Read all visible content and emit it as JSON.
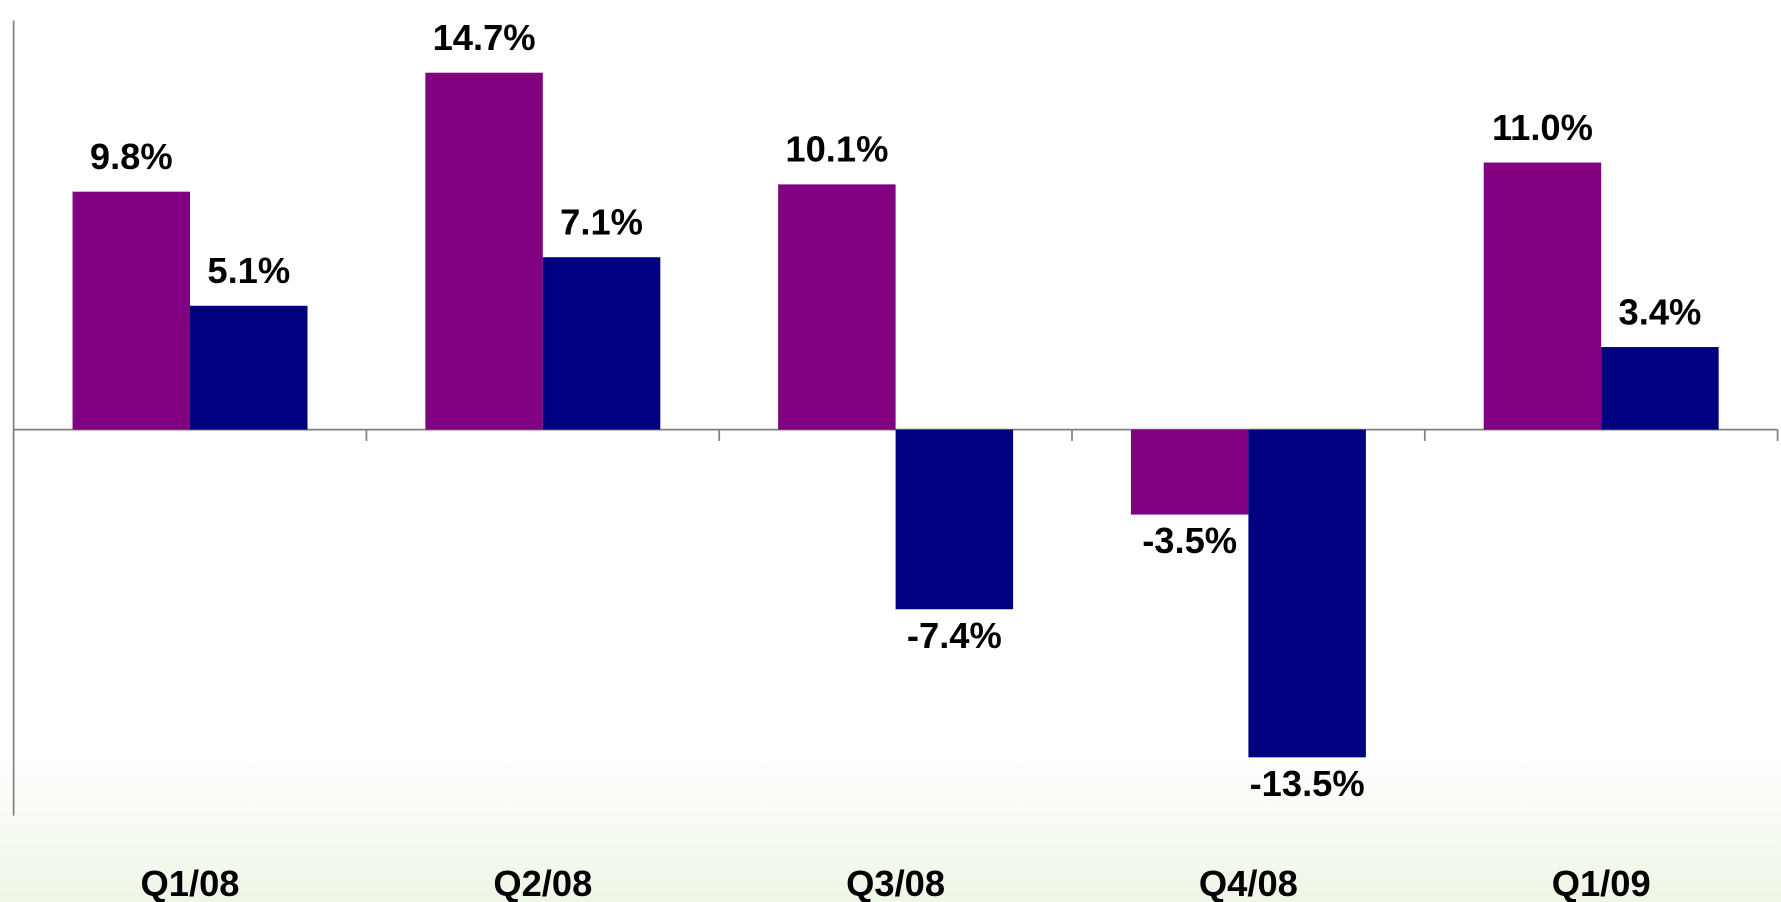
{
  "chart_data": {
    "type": "bar",
    "categories": [
      "Q1/08",
      "Q2/08",
      "Q3/08",
      "Q4/08",
      "Q1/09"
    ],
    "series": [
      {
        "color": "#800080",
        "values": [
          9.8,
          14.7,
          10.1,
          -3.5,
          11.0
        ],
        "value_labels": [
          "9.8%",
          "14.7%",
          "10.1%",
          "-3.5%",
          "11.0%"
        ]
      },
      {
        "color": "#000080",
        "values": [
          5.1,
          7.1,
          -7.4,
          -13.5,
          3.4
        ],
        "value_labels": [
          "5.1%",
          "7.1%",
          "-7.4%",
          "-13.5%",
          "3.4%"
        ]
      }
    ],
    "ylim": [
      -15.9,
      16.85
    ]
  }
}
